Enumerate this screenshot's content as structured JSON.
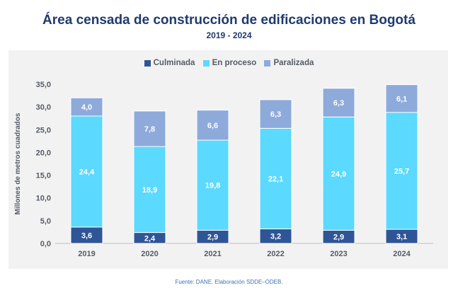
{
  "header": {
    "title": "Área censada de construcción de edificaciones en Bogotá",
    "subtitle": "2019 - 2024"
  },
  "legend": [
    {
      "label": "Culminada",
      "color": "#2f5597"
    },
    {
      "label": "En proceso",
      "color": "#5bd9ff"
    },
    {
      "label": "Paralizada",
      "color": "#8eaadb"
    }
  ],
  "source": "Fuente: DANE. Elaboración SDDE–ODEB.",
  "chart_data": {
    "type": "bar",
    "stacked": true,
    "title": "Área censada de construcción de edificaciones en Bogotá",
    "subtitle": "2019 - 2024",
    "ylabel": "Millones de metros cuadrados",
    "xlabel": "",
    "ylim": [
      0,
      35
    ],
    "yticks": [
      "0,0",
      "5,0",
      "10,0",
      "15,0",
      "20,0",
      "25,0",
      "30,0",
      "35,0"
    ],
    "grid": false,
    "legend_position": "top",
    "categories": [
      "2019",
      "2020",
      "2021",
      "2022",
      "2023",
      "2024"
    ],
    "series": [
      {
        "name": "Culminada",
        "color": "#2f5597",
        "values": [
          3.6,
          2.4,
          2.9,
          3.2,
          2.9,
          3.1
        ],
        "labels": [
          "3,6",
          "2,4",
          "2,9",
          "3,2",
          "2,9",
          "3,1"
        ]
      },
      {
        "name": "En proceso",
        "color": "#5bd9ff",
        "values": [
          24.4,
          18.9,
          19.8,
          22.1,
          24.9,
          25.7
        ],
        "labels": [
          "24,4",
          "18,9",
          "19,8",
          "22,1",
          "24,9",
          "25,7"
        ]
      },
      {
        "name": "Paralizada",
        "color": "#8eaadb",
        "values": [
          4.0,
          7.8,
          6.6,
          6.3,
          6.3,
          6.1
        ],
        "labels": [
          "4,0",
          "7,8",
          "6,6",
          "6,3",
          "6,3",
          "6,1"
        ]
      }
    ]
  }
}
